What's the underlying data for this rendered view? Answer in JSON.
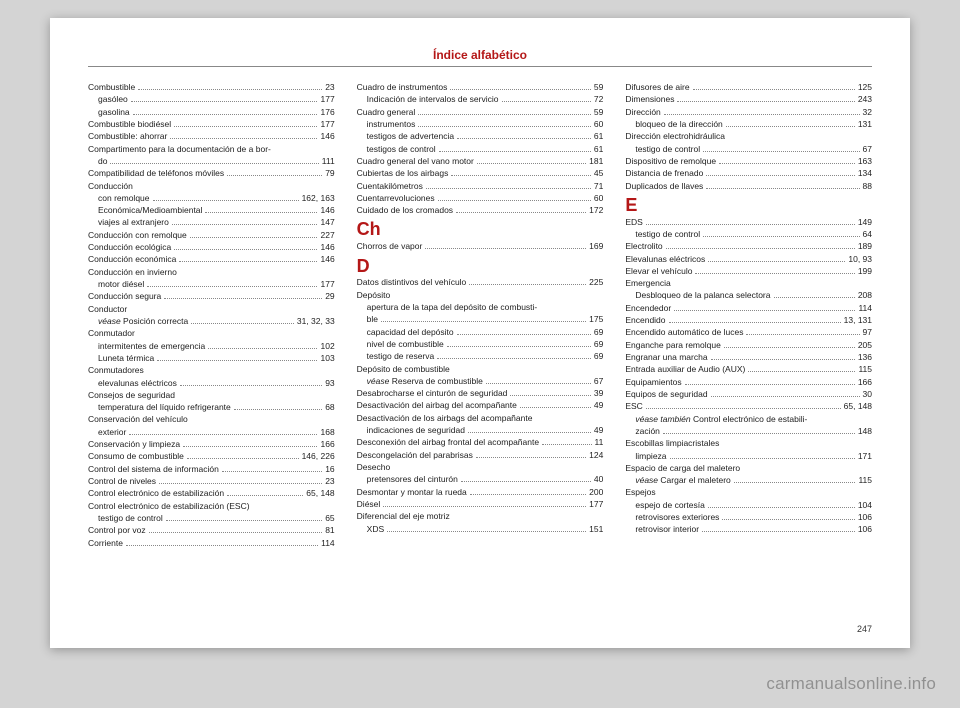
{
  "header": {
    "title": "Índice alfabético"
  },
  "pageNumber": "247",
  "watermark": "carmanualsonline.info",
  "columns": [
    {
      "blocks": [
        {
          "type": "entry",
          "label": "Combustible",
          "page": "23"
        },
        {
          "type": "entry",
          "sub": true,
          "label": "gasóleo",
          "page": "177"
        },
        {
          "type": "entry",
          "sub": true,
          "label": "gasolina",
          "page": "176"
        },
        {
          "type": "entry",
          "label": "Combustible biodiésel",
          "page": "177"
        },
        {
          "type": "entry",
          "label": "Combustible: ahorrar",
          "page": "146"
        },
        {
          "type": "entry",
          "label": "Compartimento para la documentación de a bor-",
          "noline": true
        },
        {
          "type": "entry",
          "sub": true,
          "label": "do",
          "page": "111"
        },
        {
          "type": "entry",
          "label": "Compatibilidad de teléfonos móviles",
          "page": "79"
        },
        {
          "type": "entry",
          "label": "Conducción",
          "noline": true
        },
        {
          "type": "entry",
          "sub": true,
          "label": "con remolque",
          "page": "162, 163"
        },
        {
          "type": "entry",
          "sub": true,
          "label": "Económica/Medioambiental",
          "page": "146"
        },
        {
          "type": "entry",
          "sub": true,
          "label": "viajes al extranjero",
          "page": "147"
        },
        {
          "type": "entry",
          "label": "Conducción con remolque",
          "page": "227"
        },
        {
          "type": "entry",
          "label": "Conducción ecológica",
          "page": "146"
        },
        {
          "type": "entry",
          "label": "Conducción económica",
          "page": "146"
        },
        {
          "type": "entry",
          "label": "Conducción en invierno",
          "noline": true
        },
        {
          "type": "entry",
          "sub": true,
          "label": "motor diésel",
          "page": "177"
        },
        {
          "type": "entry",
          "label": "Conducción segura",
          "page": "29"
        },
        {
          "type": "entry",
          "label": "Conductor",
          "noline": true
        },
        {
          "type": "entry",
          "sub": true,
          "italicPrefix": "véase",
          "label": " Posición correcta",
          "page": "31, 32, 33"
        },
        {
          "type": "entry",
          "label": "Conmutador",
          "noline": true
        },
        {
          "type": "entry",
          "sub": true,
          "label": "intermitentes de emergencia",
          "page": "102"
        },
        {
          "type": "entry",
          "sub": true,
          "label": "Luneta térmica",
          "page": "103"
        },
        {
          "type": "entry",
          "label": "Conmutadores",
          "noline": true
        },
        {
          "type": "entry",
          "sub": true,
          "label": "elevalunas eléctricos",
          "page": "93"
        },
        {
          "type": "entry",
          "label": "Consejos de seguridad",
          "noline": true
        },
        {
          "type": "entry",
          "sub": true,
          "label": "temperatura del líquido refrigerante",
          "page": "68"
        },
        {
          "type": "entry",
          "label": "Conservación del vehículo",
          "noline": true
        },
        {
          "type": "entry",
          "sub": true,
          "label": "exterior",
          "page": "168"
        },
        {
          "type": "entry",
          "label": "Conservación y limpieza",
          "page": "166"
        },
        {
          "type": "entry",
          "label": "Consumo de combustible",
          "page": "146, 226"
        },
        {
          "type": "entry",
          "label": "Control del sistema de información",
          "page": "16"
        },
        {
          "type": "entry",
          "label": "Control de niveles",
          "page": "23"
        },
        {
          "type": "entry",
          "label": "Control electrónico de estabilización",
          "page": "65, 148"
        },
        {
          "type": "entry",
          "label": "Control electrónico de estabilización (ESC)",
          "noline": true
        },
        {
          "type": "entry",
          "sub": true,
          "label": "testigo de control",
          "page": "65"
        },
        {
          "type": "entry",
          "label": "Control por voz",
          "page": "81"
        },
        {
          "type": "entry",
          "label": "Corriente",
          "page": "114"
        }
      ]
    },
    {
      "blocks": [
        {
          "type": "entry",
          "label": "Cuadro de instrumentos",
          "page": "59"
        },
        {
          "type": "entry",
          "sub": true,
          "label": "Indicación de intervalos de servicio",
          "page": "72"
        },
        {
          "type": "entry",
          "label": "Cuadro general",
          "page": "59"
        },
        {
          "type": "entry",
          "sub": true,
          "label": "instrumentos",
          "page": "60"
        },
        {
          "type": "entry",
          "sub": true,
          "label": "testigos de advertencia",
          "page": "61"
        },
        {
          "type": "entry",
          "sub": true,
          "label": "testigos de control",
          "page": "61"
        },
        {
          "type": "entry",
          "label": "Cuadro general del vano motor",
          "page": "181"
        },
        {
          "type": "entry",
          "label": "Cubiertas de los airbags",
          "page": "45"
        },
        {
          "type": "entry",
          "label": "Cuentakilómetros",
          "page": "71"
        },
        {
          "type": "entry",
          "label": "Cuentarrevoluciones",
          "page": "60"
        },
        {
          "type": "entry",
          "label": "Cuidado de los cromados",
          "page": "172"
        },
        {
          "type": "section",
          "letter": "Ch"
        },
        {
          "type": "entry",
          "label": "Chorros de vapor",
          "page": "169"
        },
        {
          "type": "section",
          "letter": "D"
        },
        {
          "type": "entry",
          "label": "Datos distintivos del vehículo",
          "page": "225"
        },
        {
          "type": "entry",
          "label": "Depósito",
          "noline": true
        },
        {
          "type": "entry",
          "sub": true,
          "label": "apertura de la tapa del depósito de combusti-",
          "noline": true
        },
        {
          "type": "entry",
          "sub": true,
          "label": "   ble",
          "page": "175"
        },
        {
          "type": "entry",
          "sub": true,
          "label": "capacidad del depósito",
          "page": "69"
        },
        {
          "type": "entry",
          "sub": true,
          "label": "nivel de combustible",
          "page": "69"
        },
        {
          "type": "entry",
          "sub": true,
          "label": "testigo de reserva",
          "page": "69"
        },
        {
          "type": "entry",
          "label": "Depósito de combustible",
          "noline": true
        },
        {
          "type": "entry",
          "sub": true,
          "italicPrefix": "véase",
          "label": " Reserva de combustible",
          "page": "67"
        },
        {
          "type": "entry",
          "label": "Desabrocharse el cinturón de seguridad",
          "page": "39"
        },
        {
          "type": "entry",
          "label": "Desactivación del airbag del acompañante",
          "page": "49"
        },
        {
          "type": "entry",
          "label": "Desactivación de los airbags del acompañante",
          "noline": true
        },
        {
          "type": "entry",
          "sub": true,
          "label": "indicaciones de seguridad",
          "page": "49"
        },
        {
          "type": "entry",
          "label": "Desconexión del airbag frontal del acompañante",
          "page": "11"
        },
        {
          "type": "entry",
          "label": "Descongelación del parabrisas",
          "page": "124"
        },
        {
          "type": "entry",
          "label": "Desecho",
          "noline": true
        },
        {
          "type": "entry",
          "sub": true,
          "label": "pretensores del cinturón",
          "page": "40"
        },
        {
          "type": "entry",
          "label": "Desmontar y montar la rueda",
          "page": "200"
        },
        {
          "type": "entry",
          "label": "Diésel",
          "page": "177"
        },
        {
          "type": "entry",
          "label": "Diferencial del eje motriz",
          "noline": true
        },
        {
          "type": "entry",
          "sub": true,
          "label": "XDS",
          "page": "151"
        }
      ]
    },
    {
      "blocks": [
        {
          "type": "entry",
          "label": "Difusores de aire",
          "page": "125"
        },
        {
          "type": "entry",
          "label": "Dimensiones",
          "page": "243"
        },
        {
          "type": "entry",
          "label": "Dirección",
          "page": "32"
        },
        {
          "type": "entry",
          "sub": true,
          "label": "bloqueo de la dirección",
          "page": "131"
        },
        {
          "type": "entry",
          "label": "Dirección electrohidráulica",
          "noline": true
        },
        {
          "type": "entry",
          "sub": true,
          "label": "testigo de control",
          "page": "67"
        },
        {
          "type": "entry",
          "label": "Dispositivo de remolque",
          "page": "163"
        },
        {
          "type": "entry",
          "label": "Distancia de frenado",
          "page": "134"
        },
        {
          "type": "entry",
          "label": "Duplicados de llaves",
          "page": "88"
        },
        {
          "type": "section",
          "letter": "E"
        },
        {
          "type": "entry",
          "label": "EDS",
          "page": "149"
        },
        {
          "type": "entry",
          "sub": true,
          "label": "testigo de control",
          "page": "64"
        },
        {
          "type": "entry",
          "label": "Electrolito",
          "page": "189"
        },
        {
          "type": "entry",
          "label": "Elevalunas eléctricos",
          "page": "10, 93"
        },
        {
          "type": "entry",
          "label": "Elevar el vehículo",
          "page": "199"
        },
        {
          "type": "entry",
          "label": "Emergencia",
          "noline": true
        },
        {
          "type": "entry",
          "sub": true,
          "label": "Desbloqueo de la palanca selectora",
          "page": "208"
        },
        {
          "type": "entry",
          "label": "Encendedor",
          "page": "114"
        },
        {
          "type": "entry",
          "label": "Encendido",
          "page": "13, 131"
        },
        {
          "type": "entry",
          "label": "Encendido automático de luces",
          "page": "97"
        },
        {
          "type": "entry",
          "label": "Enganche para remolque",
          "page": "205"
        },
        {
          "type": "entry",
          "label": "Engranar una marcha",
          "page": "136"
        },
        {
          "type": "entry",
          "label": "Entrada auxiliar de Audio (AUX)",
          "page": "115"
        },
        {
          "type": "entry",
          "label": "Equipamientos",
          "page": "166"
        },
        {
          "type": "entry",
          "label": "Equipos de seguridad",
          "page": "30"
        },
        {
          "type": "entry",
          "label": "ESC",
          "page": "65, 148"
        },
        {
          "type": "entry",
          "sub": true,
          "italicPrefix": "véase también",
          "label": " Control electrónico de estabili-",
          "noline": true
        },
        {
          "type": "entry",
          "sub": true,
          "label": "   zación",
          "page": "148"
        },
        {
          "type": "entry",
          "label": "Escobillas limpiacristales",
          "noline": true
        },
        {
          "type": "entry",
          "sub": true,
          "label": "limpieza",
          "page": "171"
        },
        {
          "type": "entry",
          "label": "Espacio de carga del maletero",
          "noline": true
        },
        {
          "type": "entry",
          "sub": true,
          "italicPrefix": "véase",
          "label": " Cargar el maletero",
          "page": "115"
        },
        {
          "type": "entry",
          "label": "Espejos",
          "noline": true
        },
        {
          "type": "entry",
          "sub": true,
          "label": "espejo de cortesía",
          "page": "104"
        },
        {
          "type": "entry",
          "sub": true,
          "label": "retrovisores exteriores",
          "page": "106"
        },
        {
          "type": "entry",
          "sub": true,
          "label": "retrovisor interior",
          "page": "106"
        }
      ]
    }
  ]
}
